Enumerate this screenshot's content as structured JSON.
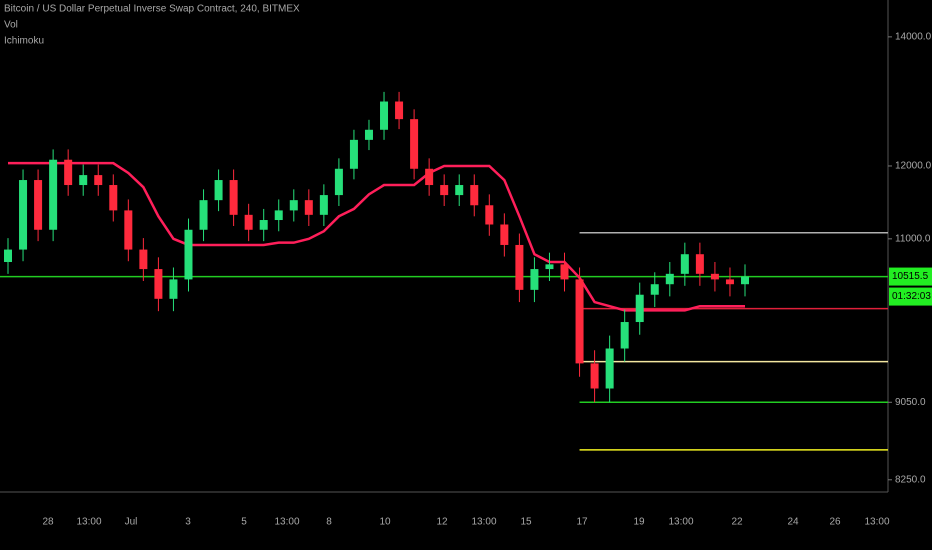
{
  "chart_data": {
    "type": "candlestick",
    "title": "Bitcoin / US Dollar Perpetual Inverse Swap Contract, 240, BITMEX",
    "indicators": [
      "Vol",
      "Ichimoku"
    ],
    "log_scale": true,
    "ylim": [
      8150,
      14630
    ],
    "yticks": [
      {
        "value": 14000,
        "label": "14000.0"
      },
      {
        "value": 12000,
        "label": "12000.0"
      },
      {
        "value": 11000,
        "label": "11000.0"
      },
      {
        "value": 9050,
        "label": "9050.0"
      },
      {
        "value": 8250,
        "label": "8250.0"
      }
    ],
    "x_labels": [
      "28",
      "13:00",
      "Jul",
      "3",
      "5",
      "13:00",
      "8",
      "10",
      "12",
      "13:00",
      "15",
      "17",
      "19",
      "13:00",
      "22",
      "24",
      "26",
      "13:00"
    ],
    "up_color": "#26e07a",
    "down_color": "#ff2a3d",
    "open": [
      10700,
      10860,
      11800,
      11120,
      12090,
      11730,
      11870,
      11730,
      11380,
      10860,
      10610,
      10240,
      10480,
      11120,
      11520,
      11800,
      11320,
      11120,
      11250,
      11380,
      11520,
      11320,
      11590,
      11960,
      12380,
      12530,
      12960,
      12690,
      11960,
      11730,
      11590,
      11730,
      11450,
      11190,
      10920,
      10350,
      10610,
      10670,
      10480,
      9480,
      9200,
      9650,
      9960,
      10290,
      10420,
      10550,
      10800,
      10550,
      10480,
      10420
    ],
    "high": [
      11010,
      11950,
      11950,
      12240,
      12240,
      12020,
      12020,
      11880,
      11530,
      11010,
      10760,
      10630,
      11270,
      11670,
      11950,
      11950,
      11470,
      11400,
      11530,
      11670,
      11670,
      11740,
      12110,
      12530,
      12680,
      13110,
      13110,
      12840,
      12110,
      11880,
      11880,
      11880,
      11600,
      11340,
      11070,
      10760,
      10820,
      10820,
      10630,
      9630,
      9800,
      10110,
      10440,
      10570,
      10700,
      10950,
      10950,
      10700,
      10630,
      10670
    ],
    "low": [
      10550,
      10710,
      10970,
      10970,
      11580,
      11580,
      11580,
      11230,
      10710,
      10460,
      10090,
      10090,
      10330,
      10970,
      11370,
      11170,
      10970,
      10970,
      11100,
      11230,
      11170,
      11170,
      11440,
      11810,
      12230,
      12380,
      12540,
      11810,
      11580,
      11440,
      11440,
      11300,
      11040,
      10770,
      10200,
      10200,
      10460,
      10330,
      9330,
      9050,
      9050,
      9500,
      9810,
      10140,
      10270,
      10400,
      10400,
      10330,
      10270,
      10270
    ],
    "close": [
      10860,
      11800,
      11120,
      12090,
      11730,
      11870,
      11730,
      11380,
      10860,
      10610,
      10240,
      10480,
      11120,
      11520,
      11800,
      11320,
      11120,
      11250,
      11380,
      11520,
      11320,
      11590,
      11960,
      12380,
      12530,
      12960,
      12690,
      11960,
      11730,
      11590,
      11730,
      11450,
      11190,
      10920,
      10350,
      10610,
      10670,
      10480,
      9480,
      9200,
      9650,
      9960,
      10290,
      10420,
      10550,
      10800,
      10550,
      10480,
      10420,
      10515.5
    ],
    "base_line": {
      "color": "#ff1f5a",
      "values": [
        12040,
        12040,
        12040,
        12040,
        12040,
        12040,
        12040,
        12040,
        11900,
        11700,
        11300,
        11000,
        10920,
        10920,
        10920,
        10920,
        10920,
        10920,
        10950,
        10950,
        11000,
        11100,
        11300,
        11400,
        11600,
        11730,
        11730,
        11730,
        11900,
        12000,
        12000,
        12000,
        12000,
        11800,
        11300,
        10800,
        10700,
        10700,
        10500,
        10200,
        10150,
        10100,
        10100,
        10100,
        10100,
        10100,
        10150,
        10150,
        10150,
        10150
      ]
    },
    "levels": [
      {
        "value": 11080,
        "color": "#b0b0b0",
        "extend": "right"
      },
      {
        "value": 10515.5,
        "color": "#22cc22",
        "extend": "full"
      },
      {
        "value": 10120,
        "color": "#e0203a",
        "extend": "right"
      },
      {
        "value": 9500,
        "color": "#f3e6a0",
        "extend": "right"
      },
      {
        "value": 9050,
        "color": "#22cc22",
        "extend": "right"
      },
      {
        "value": 8550,
        "color": "#f0f020",
        "extend": "right"
      }
    ],
    "last_price": {
      "value": 10515.5,
      "label": "10515.5",
      "countdown": "01:32:03",
      "color": "#22ee22"
    }
  }
}
